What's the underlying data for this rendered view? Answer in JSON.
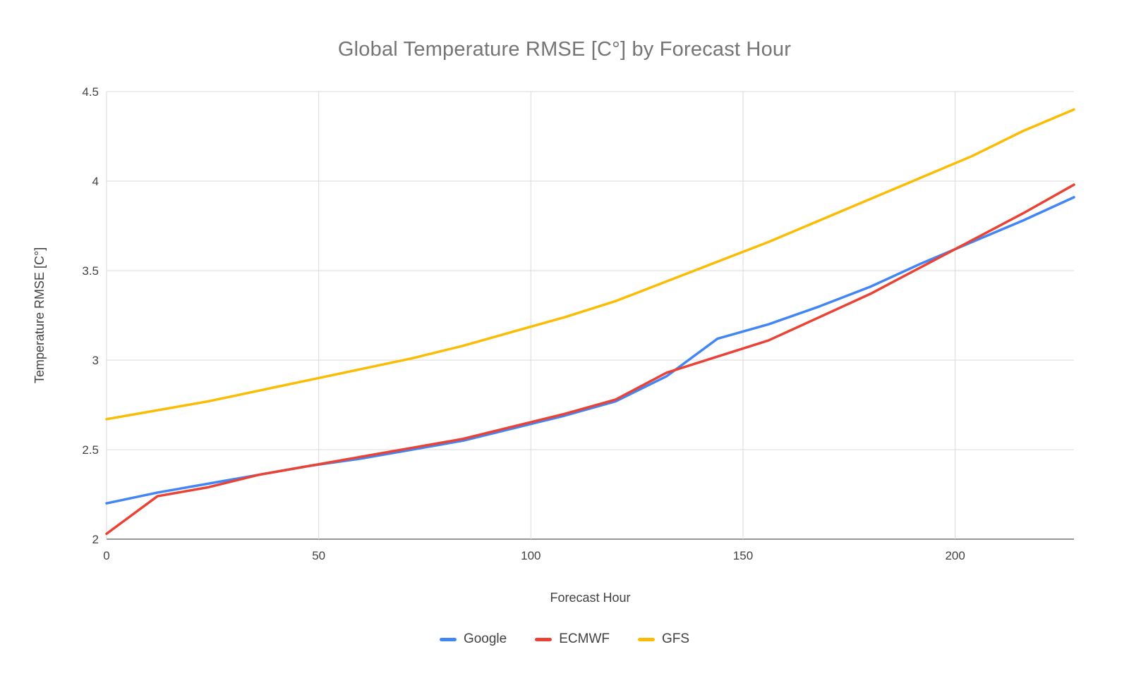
{
  "chart_data": {
    "type": "line",
    "title": "Global Temperature RMSE [C°] by Forecast Hour",
    "xlabel": "Forecast Hour",
    "ylabel": "Temperature RMSE [C°]",
    "xlim": [
      0,
      228
    ],
    "ylim": [
      2,
      4.5
    ],
    "xticks": [
      0,
      50,
      100,
      150,
      200
    ],
    "yticks": [
      2,
      2.5,
      3,
      3.5,
      4,
      4.5
    ],
    "grid": true,
    "legend_position": "bottom",
    "x": [
      0,
      12,
      24,
      36,
      48,
      60,
      72,
      84,
      96,
      108,
      120,
      132,
      144,
      156,
      168,
      180,
      192,
      204,
      216,
      228
    ],
    "series": [
      {
        "name": "Google",
        "color": "#4285F4",
        "values": [
          2.2,
          2.26,
          2.31,
          2.36,
          2.41,
          2.45,
          2.5,
          2.55,
          2.62,
          2.69,
          2.77,
          2.91,
          3.12,
          3.2,
          3.3,
          3.41,
          3.54,
          3.66,
          3.78,
          3.91
        ]
      },
      {
        "name": "ECMWF",
        "color": "#EA4335",
        "values": [
          2.03,
          2.24,
          2.29,
          2.36,
          2.41,
          2.46,
          2.51,
          2.56,
          2.63,
          2.7,
          2.78,
          2.93,
          3.02,
          3.11,
          3.24,
          3.37,
          3.52,
          3.67,
          3.82,
          3.98
        ]
      },
      {
        "name": "GFS",
        "color": "#FBBC04",
        "values": [
          2.67,
          2.72,
          2.77,
          2.83,
          2.89,
          2.95,
          3.01,
          3.08,
          3.16,
          3.24,
          3.33,
          3.44,
          3.55,
          3.66,
          3.78,
          3.9,
          4.02,
          4.14,
          4.28,
          4.4
        ]
      }
    ]
  }
}
